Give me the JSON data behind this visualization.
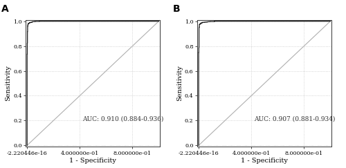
{
  "panel_A_label": "A",
  "panel_B_label": "B",
  "auc_text_A": "AUC: 0.910 (0.884-0.936)",
  "auc_text_B": "AUC: 0.907 (0.881-0.934)",
  "xlabel": "1 - Specificity",
  "ylabel": "Sensitivity",
  "xticks": [
    0.0,
    0.4,
    0.8
  ],
  "xtick_labels": [
    "-2.220446e-16",
    "4.000000e-01",
    "8.000000e-01"
  ],
  "yticks": [
    0.0,
    0.2,
    0.4,
    0.6,
    0.8,
    1.0
  ],
  "ytick_labels": [
    "0.0",
    "0.2",
    "0.4",
    "0.6",
    "0.8",
    "1.0"
  ],
  "curve_color": "#1a1a1a",
  "diag_color": "#b0b0b0",
  "grid_color": "#c8c8c8",
  "background_color": "#ffffff",
  "auc_fontsize": 6.5,
  "label_fontsize": 7,
  "tick_fontsize": 5.8,
  "panel_label_fontsize": 10,
  "seed_A": 10,
  "seed_B": 77,
  "auc_A": 0.91,
  "auc_B": 0.907
}
